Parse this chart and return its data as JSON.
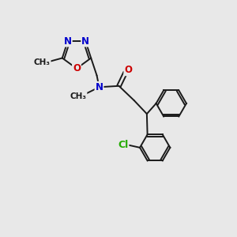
{
  "bg_color": "#e8e8e8",
  "bond_color": "#1a1a1a",
  "N_color": "#0000cc",
  "O_color": "#cc0000",
  "Cl_color": "#22aa00",
  "lw": 1.4,
  "fs": 8.5,
  "fig_size": [
    3.0,
    3.0
  ],
  "dpi": 100,
  "xlim": [
    0,
    10
  ],
  "ylim": [
    0,
    10
  ],
  "ring_r": 0.65,
  "penta_r": 0.62
}
